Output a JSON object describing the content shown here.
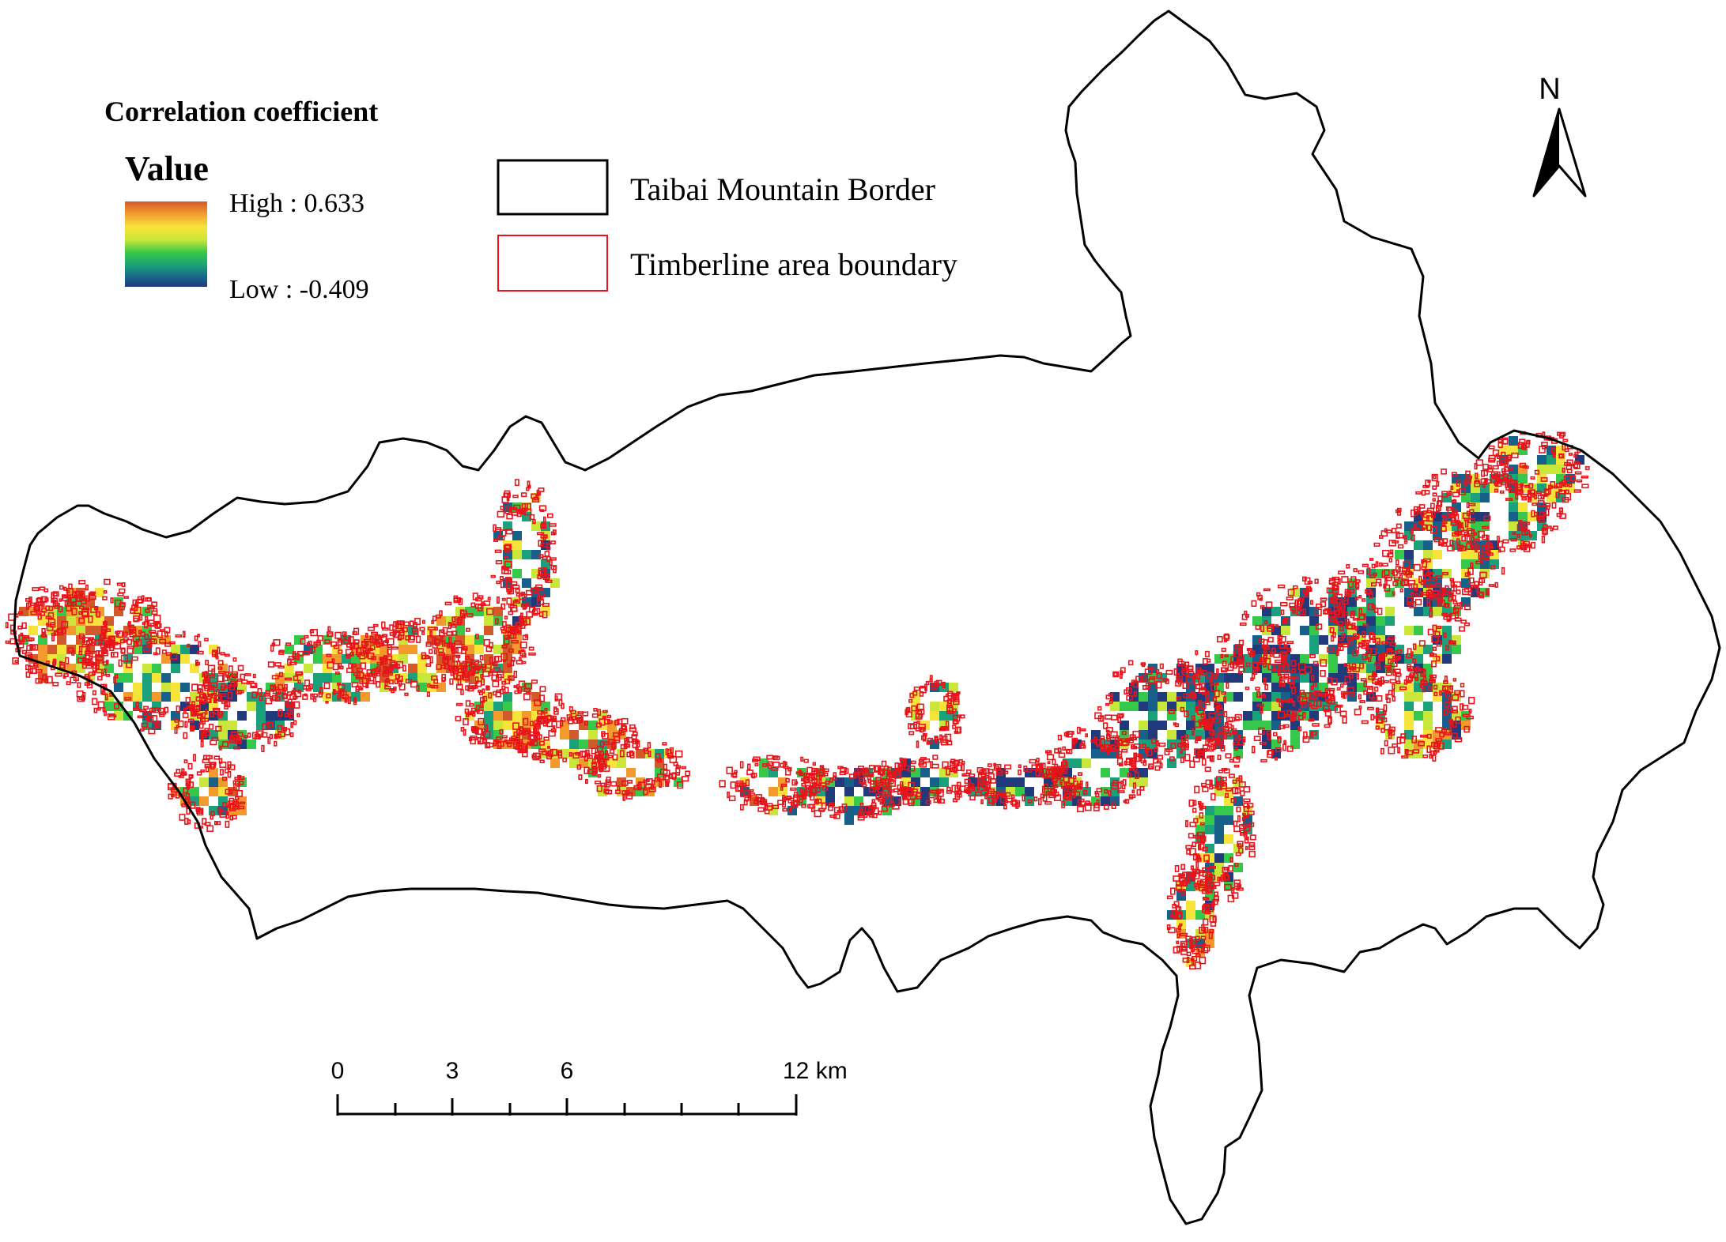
{
  "legend": {
    "title": "Correlation coefficient",
    "value_heading": "Value",
    "high_label": "High : 0.633",
    "low_label": "Low : -0.409",
    "gradient_colors": [
      "#d2592a",
      "#f29a2e",
      "#f7e43a",
      "#c9e63a",
      "#36c84a",
      "#1aa07a",
      "#17608a",
      "#213a7c"
    ]
  },
  "layers": {
    "border_label": "Taibai Mountain Border",
    "border_color": "#000000",
    "timberline_label": "Timberline area boundary",
    "timberline_color": "#e8141b"
  },
  "north_arrow": {
    "label": "N"
  },
  "scale_bar": {
    "ticks": [
      "0",
      "3",
      "6",
      "12 km"
    ]
  }
}
